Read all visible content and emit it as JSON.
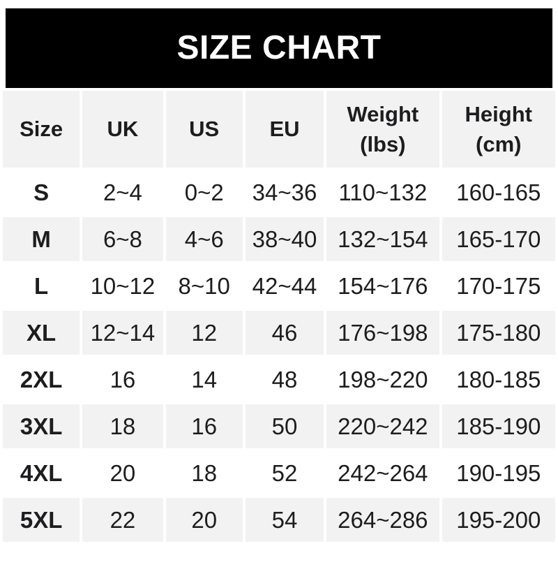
{
  "colors": {
    "banner_bg": "#000000",
    "banner_text": "#ffffff",
    "cell_bg_gray": "#f2f2f2",
    "cell_bg_white": "#ffffff",
    "text": "#1d1d1f"
  },
  "chart_data": {
    "type": "table",
    "title": "SIZE CHART",
    "columns": [
      {
        "label": "Size",
        "sub": ""
      },
      {
        "label": "UK",
        "sub": ""
      },
      {
        "label": "US",
        "sub": ""
      },
      {
        "label": "EU",
        "sub": ""
      },
      {
        "label": "Weight",
        "sub": "(lbs)"
      },
      {
        "label": "Height",
        "sub": "(cm)"
      }
    ],
    "rows": [
      {
        "size": "S",
        "uk": "2~4",
        "us": "0~2",
        "eu": "34~36",
        "weight": "110~132",
        "height": "160-165"
      },
      {
        "size": "M",
        "uk": "6~8",
        "us": "4~6",
        "eu": "38~40",
        "weight": "132~154",
        "height": "165-170"
      },
      {
        "size": "L",
        "uk": "10~12",
        "us": "8~10",
        "eu": "42~44",
        "weight": "154~176",
        "height": "170-175"
      },
      {
        "size": "XL",
        "uk": "12~14",
        "us": "12",
        "eu": "46",
        "weight": "176~198",
        "height": "175-180"
      },
      {
        "size": "2XL",
        "uk": "16",
        "us": "14",
        "eu": "48",
        "weight": "198~220",
        "height": "180-185"
      },
      {
        "size": "3XL",
        "uk": "18",
        "us": "16",
        "eu": "50",
        "weight": "220~242",
        "height": "185-190"
      },
      {
        "size": "4XL",
        "uk": "20",
        "us": "18",
        "eu": "52",
        "weight": "242~264",
        "height": "190-195"
      },
      {
        "size": "5XL",
        "uk": "22",
        "us": "20",
        "eu": "54",
        "weight": "264~286",
        "height": "195-200"
      }
    ]
  }
}
